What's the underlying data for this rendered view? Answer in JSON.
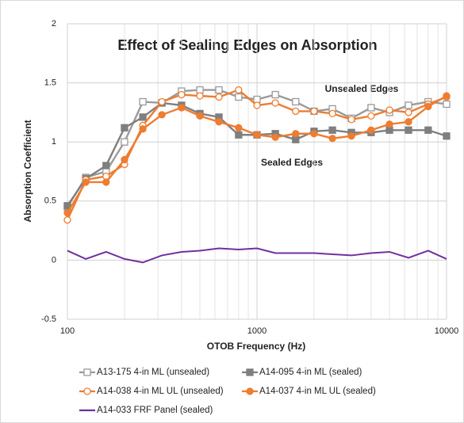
{
  "chart_data": {
    "type": "line",
    "title": "Effect of Sealing Edges on Absorption",
    "x_label": "OTOB Frequency (Hz)",
    "y_label": "Absorption Coefficient",
    "annotations": [
      "Unsealed Edges",
      "Sealed Edges"
    ],
    "x": [
      100,
      125,
      160,
      200,
      250,
      315,
      400,
      500,
      630,
      800,
      1000,
      1250,
      1600,
      2000,
      2500,
      3150,
      4000,
      5000,
      6300,
      8000,
      10000
    ],
    "x_log": true,
    "xlim": [
      100,
      10000
    ],
    "xticks": [
      100,
      1000,
      10000
    ],
    "xminor": [
      200,
      300,
      400,
      500,
      600,
      700,
      800,
      900,
      2000,
      3000,
      4000,
      5000,
      6000,
      7000,
      8000,
      9000
    ],
    "ylim": [
      -0.5,
      2
    ],
    "yticks": [
      -0.5,
      0,
      0.5,
      1,
      1.5,
      2
    ],
    "grid": true,
    "legend": "bottom",
    "series": [
      {
        "name": "A13-175 4-in ML (unsealed)",
        "color": "#9a9a9a",
        "marker": "square",
        "filled": false,
        "values": [
          0.45,
          0.7,
          0.75,
          1.0,
          1.34,
          1.33,
          1.43,
          1.44,
          1.44,
          1.38,
          1.36,
          1.4,
          1.34,
          1.26,
          1.28,
          1.2,
          1.29,
          1.25,
          1.31,
          1.34,
          1.32
        ]
      },
      {
        "name": "A14-095 4-in ML (sealed)",
        "color": "#7f7f7f",
        "marker": "square",
        "filled": true,
        "values": [
          0.46,
          0.69,
          0.8,
          1.12,
          1.21,
          1.33,
          1.31,
          1.24,
          1.21,
          1.06,
          1.06,
          1.07,
          1.02,
          1.09,
          1.1,
          1.08,
          1.08,
          1.1,
          1.1,
          1.1,
          1.05
        ]
      },
      {
        "name": "A14-038 4-in ML UL (unsealed)",
        "color": "#ed7d31",
        "marker": "circle",
        "filled": false,
        "values": [
          0.34,
          0.68,
          0.71,
          0.81,
          1.14,
          1.34,
          1.4,
          1.39,
          1.38,
          1.44,
          1.31,
          1.33,
          1.26,
          1.26,
          1.24,
          1.19,
          1.22,
          1.27,
          1.25,
          1.32,
          1.38
        ]
      },
      {
        "name": "A14-037 4-in ML UL (sealed)",
        "color": "#ed7d31",
        "marker": "circle",
        "filled": true,
        "values": [
          0.4,
          0.66,
          0.66,
          0.85,
          1.11,
          1.23,
          1.29,
          1.22,
          1.17,
          1.12,
          1.06,
          1.04,
          1.07,
          1.07,
          1.03,
          1.05,
          1.1,
          1.15,
          1.17,
          1.3,
          1.39
        ]
      },
      {
        "name": "A14-033 FRF Panel (sealed)",
        "color": "#7030a0",
        "marker": "none",
        "filled": false,
        "values": [
          0.08,
          0.01,
          0.07,
          0.01,
          -0.02,
          0.04,
          0.07,
          0.08,
          0.1,
          0.09,
          0.1,
          0.06,
          0.06,
          0.06,
          0.05,
          0.04,
          0.06,
          0.07,
          0.02,
          0.08,
          0.01
        ]
      }
    ]
  }
}
